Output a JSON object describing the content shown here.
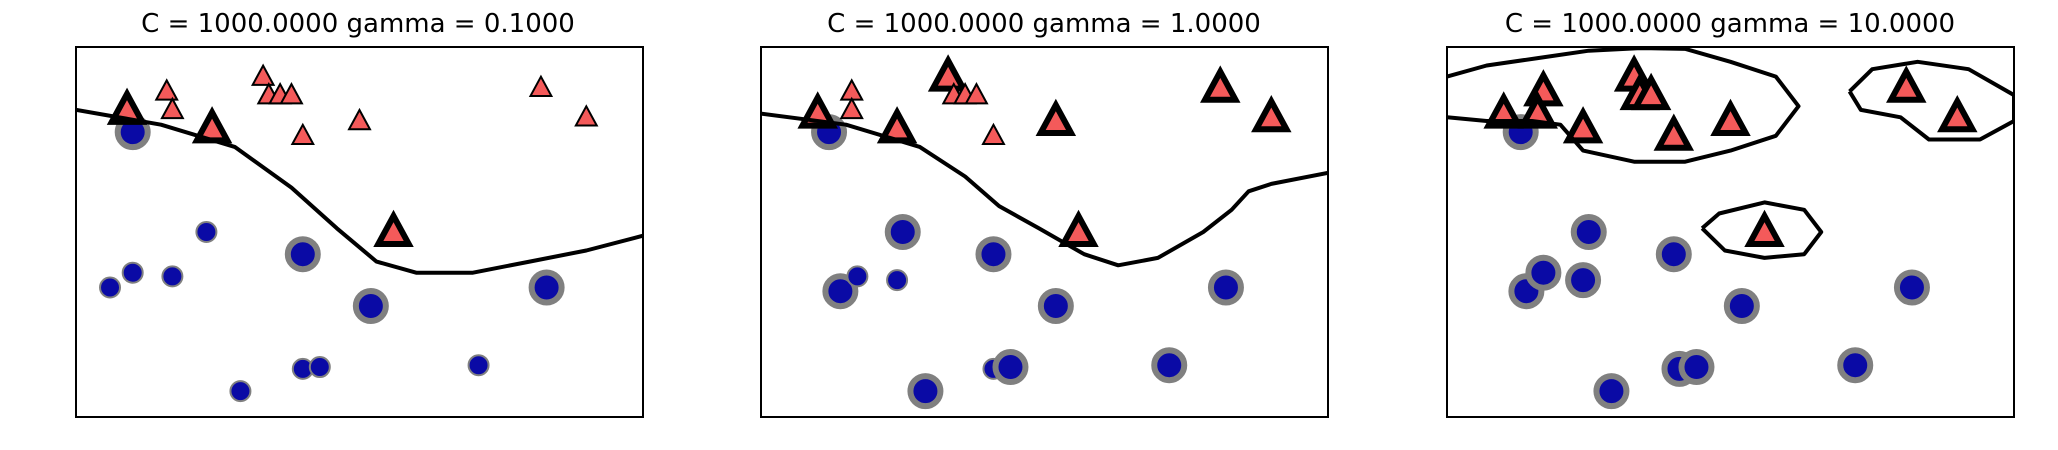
{
  "chart_data": [
    {
      "type": "scatter",
      "title": "C = 1000.0000 gamma = 0.1000",
      "xlim": [
        0,
        10
      ],
      "ylim": [
        0,
        10
      ],
      "ticks_visible": false,
      "points": [
        {
          "x": 1.0,
          "y": 7.7,
          "cls": 0,
          "sv": true
        },
        {
          "x": 2.3,
          "y": 5.0,
          "cls": 0,
          "sv": false
        },
        {
          "x": 4.0,
          "y": 4.4,
          "cls": 0,
          "sv": true
        },
        {
          "x": 5.2,
          "y": 3.0,
          "cls": 0,
          "sv": true
        },
        {
          "x": 8.3,
          "y": 3.5,
          "cls": 0,
          "sv": true
        },
        {
          "x": 0.6,
          "y": 3.5,
          "cls": 0,
          "sv": false
        },
        {
          "x": 1.7,
          "y": 3.8,
          "cls": 0,
          "sv": false
        },
        {
          "x": 2.9,
          "y": 0.7,
          "cls": 0,
          "sv": false
        },
        {
          "x": 4.0,
          "y": 1.3,
          "cls": 0,
          "sv": false
        },
        {
          "x": 4.3,
          "y": 1.35,
          "cls": 0,
          "sv": false
        },
        {
          "x": 7.1,
          "y": 1.4,
          "cls": 0,
          "sv": false
        },
        {
          "x": 1.0,
          "y": 3.9,
          "cls": 0,
          "sv": false
        },
        {
          "x": 1.0,
          "y": 8.2,
          "cls": 1,
          "sv": false
        },
        {
          "x": 1.6,
          "y": 8.8,
          "cls": 1,
          "sv": false
        },
        {
          "x": 3.3,
          "y": 9.2,
          "cls": 1,
          "sv": false
        },
        {
          "x": 3.4,
          "y": 8.7,
          "cls": 1,
          "sv": false
        },
        {
          "x": 3.6,
          "y": 8.7,
          "cls": 1,
          "sv": false
        },
        {
          "x": 3.8,
          "y": 8.7,
          "cls": 1,
          "sv": false
        },
        {
          "x": 4.0,
          "y": 7.6,
          "cls": 1,
          "sv": false
        },
        {
          "x": 5.0,
          "y": 8.0,
          "cls": 1,
          "sv": false
        },
        {
          "x": 8.2,
          "y": 8.9,
          "cls": 1,
          "sv": false
        },
        {
          "x": 9.0,
          "y": 8.1,
          "cls": 1,
          "sv": false
        },
        {
          "x": 0.9,
          "y": 8.3,
          "cls": 1,
          "sv": true
        },
        {
          "x": 2.4,
          "y": 7.8,
          "cls": 1,
          "sv": true
        },
        {
          "x": 5.6,
          "y": 5.0,
          "cls": 1,
          "sv": true
        },
        {
          "x": 1.7,
          "y": 8.3,
          "cls": 1,
          "sv": false
        }
      ],
      "boundaries": [
        [
          [
            0,
            8.3
          ],
          [
            1.5,
            7.9
          ],
          [
            2.8,
            7.3
          ],
          [
            3.8,
            6.2
          ],
          [
            4.6,
            5.1
          ],
          [
            5.3,
            4.2
          ],
          [
            6.0,
            3.9
          ],
          [
            7.0,
            3.9
          ],
          [
            8.0,
            4.2
          ],
          [
            9.0,
            4.5
          ],
          [
            10,
            4.9
          ]
        ]
      ]
    },
    {
      "type": "scatter",
      "title": "C = 1000.0000 gamma = 1.0000",
      "xlim": [
        0,
        10
      ],
      "ylim": [
        0,
        10
      ],
      "ticks_visible": false,
      "points": [
        {
          "x": 1.2,
          "y": 7.7,
          "cls": 0,
          "sv": true
        },
        {
          "x": 2.5,
          "y": 5.0,
          "cls": 0,
          "sv": true
        },
        {
          "x": 4.1,
          "y": 4.4,
          "cls": 0,
          "sv": true
        },
        {
          "x": 5.2,
          "y": 3.0,
          "cls": 0,
          "sv": true
        },
        {
          "x": 8.2,
          "y": 3.5,
          "cls": 0,
          "sv": true
        },
        {
          "x": 1.4,
          "y": 3.4,
          "cls": 0,
          "sv": true
        },
        {
          "x": 1.7,
          "y": 3.8,
          "cls": 0,
          "sv": false
        },
        {
          "x": 2.4,
          "y": 3.7,
          "cls": 0,
          "sv": false
        },
        {
          "x": 2.9,
          "y": 0.7,
          "cls": 0,
          "sv": true
        },
        {
          "x": 4.1,
          "y": 1.3,
          "cls": 0,
          "sv": false
        },
        {
          "x": 4.4,
          "y": 1.35,
          "cls": 0,
          "sv": true
        },
        {
          "x": 7.2,
          "y": 1.4,
          "cls": 0,
          "sv": true
        },
        {
          "x": 1.0,
          "y": 8.2,
          "cls": 1,
          "sv": true
        },
        {
          "x": 1.6,
          "y": 8.8,
          "cls": 1,
          "sv": false
        },
        {
          "x": 1.6,
          "y": 8.3,
          "cls": 1,
          "sv": false
        },
        {
          "x": 3.3,
          "y": 9.2,
          "cls": 1,
          "sv": true
        },
        {
          "x": 3.4,
          "y": 8.7,
          "cls": 1,
          "sv": false
        },
        {
          "x": 3.6,
          "y": 8.7,
          "cls": 1,
          "sv": false
        },
        {
          "x": 3.8,
          "y": 8.7,
          "cls": 1,
          "sv": false
        },
        {
          "x": 4.1,
          "y": 7.6,
          "cls": 1,
          "sv": false
        },
        {
          "x": 2.4,
          "y": 7.8,
          "cls": 1,
          "sv": true
        },
        {
          "x": 5.2,
          "y": 8.0,
          "cls": 1,
          "sv": true
        },
        {
          "x": 8.1,
          "y": 8.9,
          "cls": 1,
          "sv": true
        },
        {
          "x": 9.0,
          "y": 8.1,
          "cls": 1,
          "sv": true
        },
        {
          "x": 5.6,
          "y": 5.0,
          "cls": 1,
          "sv": true
        }
      ],
      "boundaries": [
        [
          [
            0,
            8.2
          ],
          [
            1.5,
            7.9
          ],
          [
            2.8,
            7.3
          ],
          [
            3.6,
            6.5
          ],
          [
            4.2,
            5.7
          ],
          [
            4.9,
            5.1
          ],
          [
            5.7,
            4.4
          ],
          [
            6.3,
            4.1
          ],
          [
            7.0,
            4.3
          ],
          [
            7.8,
            5.0
          ],
          [
            8.3,
            5.6
          ],
          [
            8.6,
            6.1
          ],
          [
            9.0,
            6.3
          ],
          [
            10,
            6.6
          ]
        ]
      ]
    },
    {
      "type": "scatter",
      "title": "C = 1000.0000 gamma = 10.0000",
      "xlim": [
        0,
        10
      ],
      "ylim": [
        0,
        10
      ],
      "ticks_visible": false,
      "points": [
        {
          "x": 1.3,
          "y": 7.7,
          "cls": 0,
          "sv": true
        },
        {
          "x": 2.5,
          "y": 5.0,
          "cls": 0,
          "sv": true
        },
        {
          "x": 4.0,
          "y": 4.4,
          "cls": 0,
          "sv": true
        },
        {
          "x": 5.2,
          "y": 3.0,
          "cls": 0,
          "sv": true
        },
        {
          "x": 8.2,
          "y": 3.5,
          "cls": 0,
          "sv": true
        },
        {
          "x": 1.4,
          "y": 3.4,
          "cls": 0,
          "sv": true
        },
        {
          "x": 1.7,
          "y": 3.9,
          "cls": 0,
          "sv": true
        },
        {
          "x": 2.4,
          "y": 3.7,
          "cls": 0,
          "sv": true
        },
        {
          "x": 2.9,
          "y": 0.7,
          "cls": 0,
          "sv": true
        },
        {
          "x": 4.1,
          "y": 1.3,
          "cls": 0,
          "sv": true
        },
        {
          "x": 4.4,
          "y": 1.35,
          "cls": 0,
          "sv": true
        },
        {
          "x": 7.2,
          "y": 1.4,
          "cls": 0,
          "sv": true
        },
        {
          "x": 1.0,
          "y": 8.2,
          "cls": 1,
          "sv": true
        },
        {
          "x": 1.7,
          "y": 8.8,
          "cls": 1,
          "sv": true
        },
        {
          "x": 1.6,
          "y": 8.2,
          "cls": 1,
          "sv": true
        },
        {
          "x": 3.3,
          "y": 9.2,
          "cls": 1,
          "sv": true
        },
        {
          "x": 3.4,
          "y": 8.7,
          "cls": 1,
          "sv": true
        },
        {
          "x": 3.6,
          "y": 8.7,
          "cls": 1,
          "sv": true
        },
        {
          "x": 2.4,
          "y": 7.8,
          "cls": 1,
          "sv": true
        },
        {
          "x": 4.0,
          "y": 7.6,
          "cls": 1,
          "sv": true
        },
        {
          "x": 5.0,
          "y": 8.0,
          "cls": 1,
          "sv": true
        },
        {
          "x": 8.1,
          "y": 8.9,
          "cls": 1,
          "sv": true
        },
        {
          "x": 9.0,
          "y": 8.1,
          "cls": 1,
          "sv": true
        },
        {
          "x": 5.6,
          "y": 5.0,
          "cls": 1,
          "sv": true
        }
      ],
      "boundaries": [
        [
          [
            0,
            9.2
          ],
          [
            0.7,
            9.5
          ],
          [
            1.6,
            9.7
          ],
          [
            2.5,
            9.9
          ],
          [
            3.4,
            9.97
          ],
          [
            4.2,
            9.95
          ],
          [
            5.0,
            9.6
          ],
          [
            5.8,
            9.2
          ],
          [
            6.2,
            8.4
          ],
          [
            5.8,
            7.6
          ],
          [
            5.0,
            7.2
          ],
          [
            4.2,
            6.9
          ],
          [
            3.3,
            6.9
          ],
          [
            2.4,
            7.2
          ],
          [
            2.0,
            7.9
          ],
          [
            1.5,
            8.0
          ],
          [
            0.7,
            8.0
          ],
          [
            0,
            8.1
          ]
        ],
        [
          [
            7.1,
            8.8
          ],
          [
            7.5,
            9.4
          ],
          [
            8.3,
            9.6
          ],
          [
            9.2,
            9.4
          ],
          [
            10,
            8.7
          ],
          [
            10,
            8.0
          ],
          [
            9.4,
            7.5
          ],
          [
            8.5,
            7.5
          ],
          [
            8.0,
            8.1
          ],
          [
            7.3,
            8.3
          ],
          [
            7.1,
            8.8
          ]
        ],
        [
          [
            4.5,
            5.1
          ],
          [
            4.8,
            5.5
          ],
          [
            5.6,
            5.8
          ],
          [
            6.3,
            5.6
          ],
          [
            6.6,
            5.0
          ],
          [
            6.3,
            4.4
          ],
          [
            5.6,
            4.3
          ],
          [
            4.9,
            4.5
          ],
          [
            4.5,
            5.1
          ]
        ]
      ]
    }
  ],
  "colors": {
    "class0_fill": "#0a0aa5",
    "class1_fill": "#f45a5a",
    "support_vector_ring": "#808080",
    "boundary": "#000000"
  }
}
